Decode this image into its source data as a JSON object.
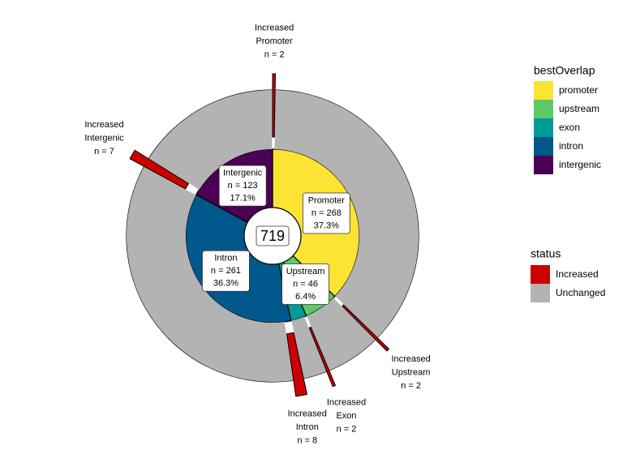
{
  "chart_data": {
    "type": "sunburst",
    "total": 719,
    "inner": {
      "legend_title": "bestOverlap",
      "keys": [
        "promoter",
        "upstream",
        "exon",
        "intron",
        "intergenic"
      ],
      "names": [
        "Promoter",
        "Upstream",
        "Exon",
        "Intron",
        "Intergenic"
      ],
      "colors": [
        "#FDE333",
        "#5CC96A",
        "#009B95",
        "#00588B",
        "#4B0055"
      ],
      "values": [
        268,
        46,
        21,
        261,
        123
      ],
      "value_labels": [
        "n = 268",
        "n = 46",
        null,
        "n = 261",
        "n = 123"
      ],
      "percent_labels": [
        "37.3%",
        "6.4%",
        null,
        "36.3%",
        "17.1%"
      ]
    },
    "outer": {
      "legend_title": "status",
      "series": [
        {
          "name": "Increased",
          "color": "#CC0000",
          "values": [
            2,
            2,
            2,
            8,
            7
          ],
          "value_labels": [
            "n = 2",
            "n = 2",
            "n = 2",
            "n = 8",
            "n = 7"
          ]
        },
        {
          "name": "Unchanged",
          "color": "#B3B3B3",
          "values": [
            266,
            44,
            19,
            253,
            116
          ]
        }
      ]
    }
  }
}
